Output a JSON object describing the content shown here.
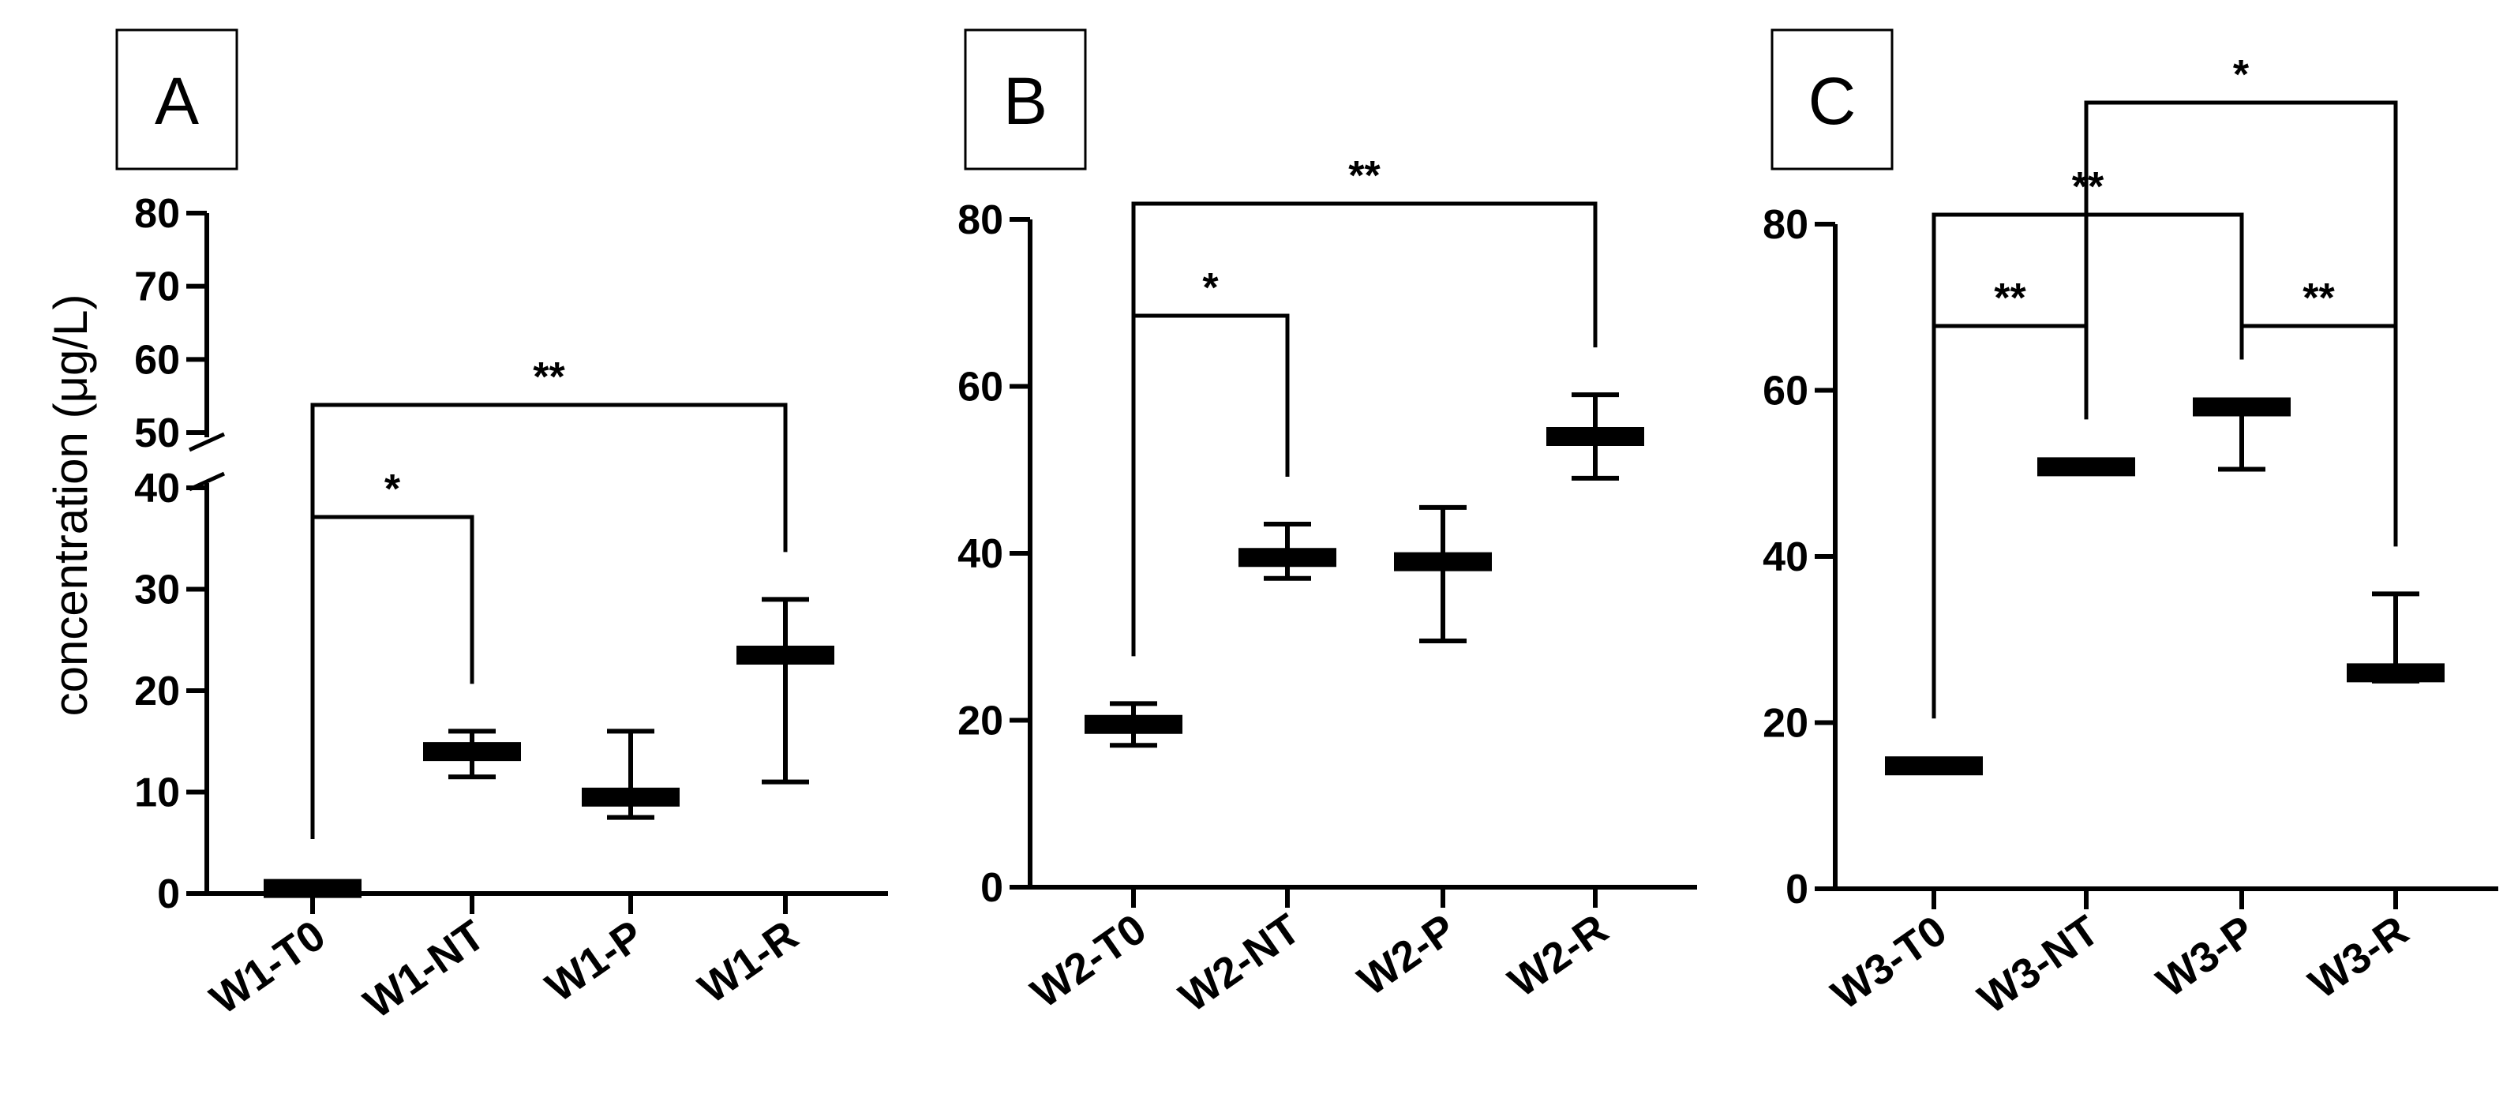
{
  "figure": {
    "ylabel": "concentration (μg/L)"
  },
  "chart_data": [
    {
      "type": "box",
      "panel": "A",
      "categories": [
        "W1-T0",
        "W1-NT",
        "W1-P",
        "W1-R"
      ],
      "ylabel": "concentration (μg/L)",
      "y_segments": [
        {
          "range": [
            0,
            40
          ],
          "ticks": [
            0,
            10,
            20,
            30,
            40
          ]
        },
        {
          "range": [
            50,
            80
          ],
          "ticks": [
            50,
            60,
            70,
            80
          ]
        }
      ],
      "y_axis_break": [
        40,
        50
      ],
      "series": [
        {
          "mean": [
            0.5,
            14,
            9.5,
            23.5
          ],
          "min": [
            0.3,
            11.5,
            7.5,
            11
          ],
          "max": [
            0.7,
            16,
            16,
            29
          ]
        }
      ],
      "annotations": [
        {
          "from": "W1-T0",
          "to": "W1-NT",
          "label": "*",
          "level": 0
        },
        {
          "from": "W1-T0",
          "to": "W1-R",
          "label": "**",
          "level": 1
        }
      ]
    },
    {
      "type": "box",
      "panel": "B",
      "categories": [
        "W2-T0",
        "W2-NT",
        "W2-P",
        "W2-R"
      ],
      "ylim": [
        0,
        80
      ],
      "yticks": [
        0,
        20,
        40,
        60,
        80
      ],
      "series": [
        {
          "mean": [
            19.5,
            39.5,
            39,
            54
          ],
          "min": [
            17,
            37,
            29.5,
            49
          ],
          "max": [
            22,
            43.5,
            45.5,
            59
          ]
        }
      ],
      "annotations": [
        {
          "from": "W2-T0",
          "to": "W2-NT",
          "label": "*",
          "level": 0
        },
        {
          "from": "W2-T0",
          "to": "W2-R",
          "label": "**",
          "level": 1
        }
      ]
    },
    {
      "type": "box",
      "panel": "C",
      "categories": [
        "W3-T0",
        "W3-NT",
        "W3-P",
        "W3-R"
      ],
      "ylim": [
        0,
        80
      ],
      "yticks": [
        0,
        20,
        40,
        60,
        80
      ],
      "series": [
        {
          "mean": [
            14.8,
            50.8,
            58,
            26
          ],
          "min": [
            14.8,
            50.8,
            50.5,
            25
          ],
          "max": [
            14.8,
            50.8,
            58,
            35.5
          ]
        }
      ],
      "annotations": [
        {
          "from": "W3-T0",
          "to": "W3-NT",
          "label": "**",
          "level": 0
        },
        {
          "from": "W3-P",
          "to": "W3-R",
          "label": "**",
          "level": 0
        },
        {
          "from": "W3-T0",
          "to": "W3-P",
          "label": "**",
          "level": 1
        },
        {
          "from": "W3-NT",
          "to": "W3-R",
          "label": "*",
          "level": 2
        }
      ]
    }
  ]
}
